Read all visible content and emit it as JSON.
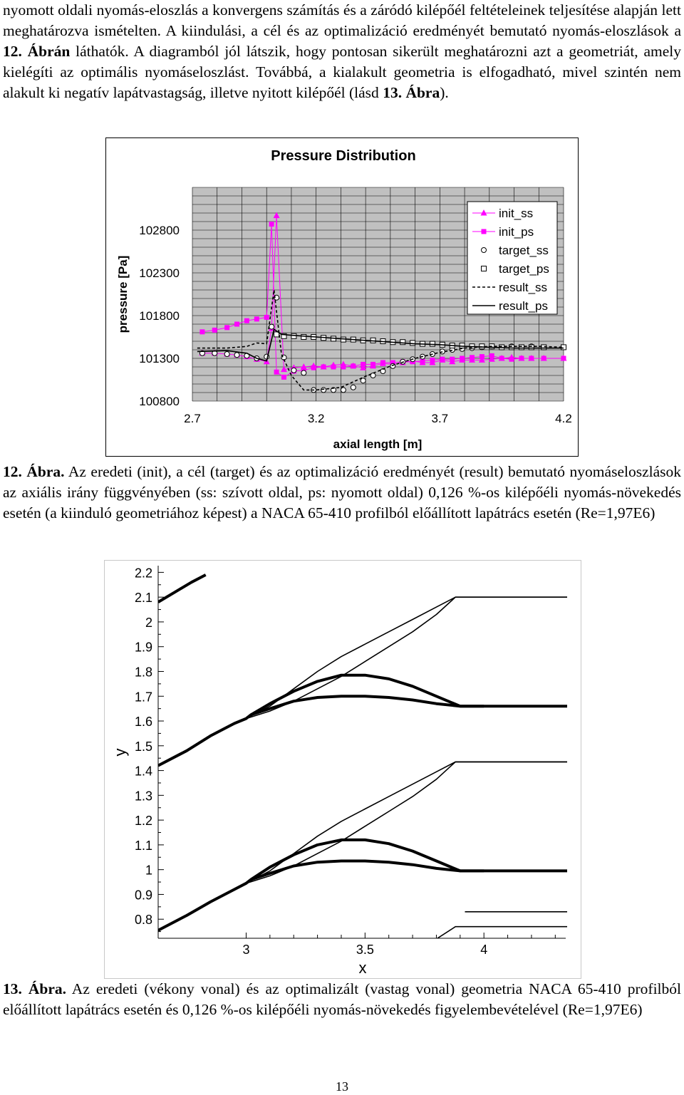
{
  "paragraph1": {
    "text_a": "nyomott oldali nyomás-eloszlás a konvergens számítás és a záródó kilépőél feltételeinek teljesítése alapján lett meghatározva ismételten. A kiindulási, a cél és az optimalizáció eredményét bemutató nyomás-eloszlások a ",
    "ref_a": "12. Ábrán",
    "text_b": " láthatók. A diagramból jól látszik, hogy pontosan sikerült meghatározni azt a geometriát, amely kielégíti az optimális nyomáseloszlást. Továbbá, a kialakult geometria is elfogadható, mivel szintén nem alakult ki negatív lapátvastagság, illetve nyitott kilépőél (lásd ",
    "ref_b": "13. Ábra",
    "text_c": ")."
  },
  "caption12": {
    "label": "12. Ábra.",
    "text": " Az eredeti (init), a cél (target) és az optimalizáció eredményét (result) bemutató nyomáseloszlások az axiális irány függvényében (ss: szívott oldal, ps: nyomott oldal) 0,126 %-os kilépőéli nyomás-növekedés esetén (a kiinduló geometriához képest) a NACA 65-410 profilból előállított lapátrács esetén (Re=1,97E6)"
  },
  "caption13": {
    "label": "13. Ábra.",
    "text": " Az eredeti (vékony vonal) és az optimalizált (vastag vonal) geometria NACA 65-410 profilból előállított lapátrács esetén és 0,126 %-os kilépőéli nyomás-növekedés figyelembevételével (Re=1,97E6)"
  },
  "page_number": "13",
  "chart_data": [
    {
      "type": "line",
      "title": "Pressure Distribution",
      "xlabel": "axial length [m]",
      "ylabel": "pressure [Pa]",
      "xlim": [
        2.7,
        4.2
      ],
      "ylim": [
        100800,
        103300
      ],
      "xticks": [
        "2.7",
        "3.2",
        "3.7",
        "4.2"
      ],
      "yticks": [
        "100800",
        "101300",
        "101800",
        "102300",
        "102800"
      ],
      "grid": true,
      "plot_background": "#c0c0c0",
      "legend_position": "top-right",
      "series": [
        {
          "name": "init_ss",
          "color": "#ff00ff",
          "marker": "triangle",
          "line": "solid",
          "x": [
            2.74,
            2.79,
            2.84,
            2.88,
            2.92,
            2.96,
            3.0,
            3.02,
            3.04,
            3.07,
            3.11,
            3.15,
            3.19,
            3.23,
            3.27,
            3.31,
            3.35,
            3.39,
            3.43,
            3.47,
            3.51,
            3.55,
            3.59,
            3.63,
            3.67,
            3.71,
            3.75,
            3.79,
            3.83,
            3.87,
            3.91,
            3.95,
            3.99,
            4.03,
            4.07,
            4.12,
            4.2
          ],
          "y": [
            101360,
            101360,
            101350,
            101340,
            101320,
            101290,
            101260,
            101650,
            102970,
            101170,
            101190,
            101200,
            101210,
            101200,
            101220,
            101230,
            101210,
            101190,
            101210,
            101240,
            101230,
            101250,
            101270,
            101250,
            101250,
            101280,
            101260,
            101280,
            101280,
            101280,
            101290,
            101300,
            101310,
            101300,
            101300,
            101300,
            101300
          ]
        },
        {
          "name": "init_ps",
          "color": "#ff00ff",
          "marker": "square",
          "line": "solid",
          "x": [
            2.74,
            2.79,
            2.84,
            2.88,
            2.92,
            2.96,
            3.0,
            3.02,
            3.04,
            3.07,
            3.11,
            3.15,
            3.19,
            3.23,
            3.27,
            3.31,
            3.35,
            3.39,
            3.43,
            3.47,
            3.51,
            3.55,
            3.59,
            3.63,
            3.67,
            3.71,
            3.75,
            3.79,
            3.83,
            3.87,
            3.91,
            3.95,
            3.99,
            4.03,
            4.07,
            4.12,
            4.2
          ],
          "y": [
            101610,
            101630,
            101660,
            101700,
            101740,
            101760,
            101780,
            102870,
            101140,
            101080,
            101150,
            101160,
            101190,
            101200,
            101200,
            101200,
            101210,
            101230,
            101230,
            101250,
            101250,
            101260,
            101260,
            101270,
            101280,
            101290,
            101290,
            101300,
            101310,
            101320,
            101330,
            101300,
            101290,
            101300,
            101300,
            101300,
            101300
          ]
        },
        {
          "name": "target_ss",
          "color": "#000000",
          "marker": "circle",
          "line": "none",
          "x": [
            2.74,
            2.79,
            2.84,
            2.88,
            2.92,
            2.96,
            3.0,
            3.02,
            3.04,
            3.07,
            3.11,
            3.15,
            3.19,
            3.23,
            3.27,
            3.31,
            3.35,
            3.39,
            3.43,
            3.47,
            3.51,
            3.55,
            3.59,
            3.63,
            3.67,
            3.71,
            3.75,
            3.79,
            3.83,
            3.87,
            3.91,
            3.95,
            3.99,
            4.03,
            4.07,
            4.12,
            4.2
          ],
          "y": [
            101360,
            101360,
            101350,
            101340,
            101330,
            101300,
            101320,
            101670,
            102010,
            101310,
            101160,
            101130,
            100930,
            100930,
            100930,
            100930,
            100960,
            101040,
            101100,
            101150,
            101210,
            101260,
            101290,
            101320,
            101350,
            101380,
            101400,
            101410,
            101420,
            101430,
            101440,
            101430,
            101440,
            101430,
            101440,
            101430,
            101430
          ]
        },
        {
          "name": "target_ps",
          "color": "#000000",
          "marker": "square",
          "line": "none",
          "x": [
            3.04,
            3.07,
            3.11,
            3.15,
            3.19,
            3.23,
            3.27,
            3.31,
            3.35,
            3.39,
            3.43,
            3.47,
            3.51,
            3.55,
            3.59,
            3.63,
            3.67,
            3.71,
            3.75,
            3.79,
            3.83,
            3.87,
            3.91,
            3.95,
            3.99,
            4.03,
            4.07,
            4.12,
            4.2
          ],
          "y": [
            101580,
            101560,
            101560,
            101550,
            101550,
            101540,
            101530,
            101520,
            101520,
            101510,
            101510,
            101500,
            101490,
            101490,
            101480,
            101470,
            101470,
            101460,
            101450,
            101450,
            101440,
            101440,
            101440,
            101430,
            101430,
            101430,
            101430,
            101430,
            101430
          ]
        },
        {
          "name": "result_ss",
          "color": "#000000",
          "marker": "none",
          "line": "dashed",
          "x": [
            2.72,
            2.84,
            2.92,
            2.96,
            3.0,
            3.03,
            3.06,
            3.1,
            3.15,
            3.2,
            3.3,
            3.4,
            3.5,
            3.6,
            3.7,
            3.8,
            3.9,
            4.0,
            4.1,
            4.2
          ],
          "y": [
            101420,
            101420,
            101440,
            101480,
            101470,
            102100,
            101350,
            101100,
            100930,
            100930,
            100960,
            101090,
            101210,
            101300,
            101370,
            101420,
            101440,
            101440,
            101440,
            101430
          ]
        },
        {
          "name": "result_ps",
          "color": "#000000",
          "marker": "none",
          "line": "solid",
          "x": [
            2.72,
            2.84,
            2.92,
            2.96,
            3.0,
            3.03,
            3.06,
            3.1,
            3.2,
            3.3,
            3.4,
            3.5,
            3.6,
            3.7,
            3.8,
            3.9,
            4.0,
            4.1,
            4.2
          ],
          "y": [
            101380,
            101390,
            101360,
            101300,
            101270,
            101640,
            101580,
            101570,
            101550,
            101530,
            101510,
            101490,
            101470,
            101460,
            101440,
            101430,
            101420,
            101420,
            101420
          ]
        }
      ]
    },
    {
      "type": "line",
      "title": "",
      "xlabel": "x",
      "ylabel": "y",
      "xlim": [
        2.63,
        4.35
      ],
      "ylim": [
        0.7,
        2.25
      ],
      "xticks": [
        "3",
        "3.5",
        "4"
      ],
      "yticks": [
        "0.8",
        "0.9",
        "1",
        "1.1",
        "1.2",
        "1.3",
        "1.4",
        "1.5",
        "1.6",
        "1.7",
        "1.8",
        "1.9",
        "2",
        "2.1",
        "2.2"
      ],
      "series": [
        {
          "role": "optimized",
          "weight": "thick",
          "x": [
            2.63,
            2.75,
            2.85,
            2.95,
            3.0,
            3.02,
            3.1,
            3.2,
            3.3,
            3.4,
            3.5,
            3.6,
            3.7,
            3.8,
            3.9,
            4.0,
            4.35
          ],
          "y": [
            1.42,
            1.48,
            1.54,
            1.59,
            1.61,
            1.625,
            1.67,
            1.72,
            1.76,
            1.785,
            1.785,
            1.77,
            1.74,
            1.7,
            1.66,
            1.66,
            1.66
          ]
        },
        {
          "role": "optimized",
          "weight": "thick",
          "x": [
            3.02,
            3.1,
            3.2,
            3.3,
            3.4,
            3.5,
            3.6,
            3.7,
            3.8,
            3.9,
            4.0
          ],
          "y": [
            1.625,
            1.65,
            1.68,
            1.695,
            1.7,
            1.7,
            1.695,
            1.685,
            1.67,
            1.66,
            1.66
          ]
        },
        {
          "role": "original",
          "weight": "thin",
          "x": [
            3.0,
            3.1,
            3.2,
            3.3,
            3.4,
            3.5,
            3.6,
            3.7,
            3.8,
            3.88,
            3.92,
            4.35
          ],
          "y": [
            1.61,
            1.66,
            1.73,
            1.8,
            1.86,
            1.91,
            1.96,
            2.01,
            2.06,
            2.1,
            2.1,
            2.1
          ]
        },
        {
          "role": "original",
          "weight": "thin",
          "x": [
            3.0,
            3.1,
            3.2,
            3.3,
            3.4,
            3.5,
            3.6,
            3.7,
            3.8,
            3.88,
            3.92,
            4.35
          ],
          "y": [
            1.61,
            1.64,
            1.68,
            1.73,
            1.78,
            1.84,
            1.9,
            1.96,
            2.03,
            2.1,
            2.1,
            2.1
          ]
        },
        {
          "role": "optimized",
          "weight": "thick",
          "x": [
            2.63,
            2.75,
            2.85,
            2.95,
            3.0,
            3.02,
            3.1,
            3.2,
            3.3,
            3.4,
            3.5,
            3.6,
            3.7,
            3.8,
            3.9,
            4.0,
            4.35
          ],
          "y": [
            0.755,
            0.815,
            0.87,
            0.92,
            0.945,
            0.96,
            1.01,
            1.06,
            1.1,
            1.12,
            1.12,
            1.105,
            1.075,
            1.035,
            0.995,
            0.995,
            0.995
          ]
        },
        {
          "role": "optimized",
          "weight": "thick",
          "x": [
            3.02,
            3.1,
            3.2,
            3.3,
            3.4,
            3.5,
            3.6,
            3.7,
            3.8,
            3.9,
            4.0
          ],
          "y": [
            0.96,
            0.985,
            1.015,
            1.03,
            1.035,
            1.035,
            1.03,
            1.02,
            1.005,
            0.995,
            0.995
          ]
        },
        {
          "role": "original",
          "weight": "thin",
          "x": [
            3.0,
            3.1,
            3.2,
            3.3,
            3.4,
            3.5,
            3.6,
            3.7,
            3.8,
            3.88,
            3.92,
            4.35
          ],
          "y": [
            0.945,
            0.995,
            1.065,
            1.135,
            1.195,
            1.245,
            1.295,
            1.345,
            1.395,
            1.435,
            1.435,
            1.435
          ]
        },
        {
          "role": "original",
          "weight": "thin",
          "x": [
            3.0,
            3.1,
            3.2,
            3.3,
            3.4,
            3.5,
            3.6,
            3.7,
            3.8,
            3.88,
            3.92,
            4.35
          ],
          "y": [
            0.945,
            0.975,
            1.015,
            1.065,
            1.115,
            1.175,
            1.235,
            1.295,
            1.365,
            1.435,
            1.435,
            1.435
          ]
        },
        {
          "role": "optimized",
          "weight": "thick",
          "x": [
            2.63,
            2.7,
            2.77,
            2.83
          ],
          "y": [
            2.08,
            2.12,
            2.16,
            2.19
          ]
        },
        {
          "role": "original",
          "weight": "thin",
          "x": [
            3.7,
            3.8,
            3.88,
            3.92,
            4.35
          ],
          "y": [
            0.68,
            0.72,
            0.77,
            0.77,
            0.77
          ]
        },
        {
          "role": "original",
          "weight": "thin",
          "x": [
            3.92,
            4.35
          ],
          "y": [
            0.83,
            0.83
          ]
        }
      ]
    }
  ]
}
